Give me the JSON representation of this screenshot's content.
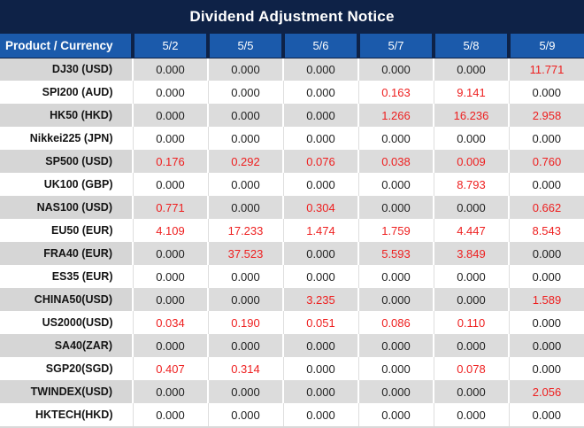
{
  "title": "Dividend Adjustment Notice",
  "colors": {
    "title_bg": "#0e2247",
    "header_bg": "#1b5aab",
    "negative_red": "#ee1f1f",
    "gray_row_label": "#d6d6d6",
    "gray_row_value": "#dcdcdc"
  },
  "table": {
    "header_label": "Product / Currency",
    "columns": [
      "5/2",
      "5/5",
      "5/6",
      "5/7",
      "5/8",
      "5/9"
    ],
    "rows": [
      {
        "label": "DJ30 (USD)",
        "values": [
          "0.000",
          "0.000",
          "0.000",
          "0.000",
          "0.000",
          "11.771"
        ],
        "red": [
          false,
          false,
          false,
          false,
          false,
          true
        ]
      },
      {
        "label": "SPI200 (AUD)",
        "values": [
          "0.000",
          "0.000",
          "0.000",
          "0.163",
          "9.141",
          "0.000"
        ],
        "red": [
          false,
          false,
          false,
          true,
          true,
          false
        ]
      },
      {
        "label": "HK50 (HKD)",
        "values": [
          "0.000",
          "0.000",
          "0.000",
          "1.266",
          "16.236",
          "2.958"
        ],
        "red": [
          false,
          false,
          false,
          true,
          true,
          true
        ]
      },
      {
        "label": "Nikkei225 (JPN)",
        "values": [
          "0.000",
          "0.000",
          "0.000",
          "0.000",
          "0.000",
          "0.000"
        ],
        "red": [
          false,
          false,
          false,
          false,
          false,
          false
        ]
      },
      {
        "label": "SP500 (USD)",
        "values": [
          "0.176",
          "0.292",
          "0.076",
          "0.038",
          "0.009",
          "0.760"
        ],
        "red": [
          true,
          true,
          true,
          true,
          true,
          true
        ]
      },
      {
        "label": "UK100 (GBP)",
        "values": [
          "0.000",
          "0.000",
          "0.000",
          "0.000",
          "8.793",
          "0.000"
        ],
        "red": [
          false,
          false,
          false,
          false,
          true,
          false
        ]
      },
      {
        "label": "NAS100 (USD)",
        "values": [
          "0.771",
          "0.000",
          "0.304",
          "0.000",
          "0.000",
          "0.662"
        ],
        "red": [
          true,
          false,
          true,
          false,
          false,
          true
        ]
      },
      {
        "label": "EU50 (EUR)",
        "values": [
          "4.109",
          "17.233",
          "1.474",
          "1.759",
          "4.447",
          "8.543"
        ],
        "red": [
          true,
          true,
          true,
          true,
          true,
          true
        ]
      },
      {
        "label": "FRA40 (EUR)",
        "values": [
          "0.000",
          "37.523",
          "0.000",
          "5.593",
          "3.849",
          "0.000"
        ],
        "red": [
          false,
          true,
          false,
          true,
          true,
          false
        ]
      },
      {
        "label": "ES35 (EUR)",
        "values": [
          "0.000",
          "0.000",
          "0.000",
          "0.000",
          "0.000",
          "0.000"
        ],
        "red": [
          false,
          false,
          false,
          false,
          false,
          false
        ]
      },
      {
        "label": "CHINA50(USD)",
        "values": [
          "0.000",
          "0.000",
          "3.235",
          "0.000",
          "0.000",
          "1.589"
        ],
        "red": [
          false,
          false,
          true,
          false,
          false,
          true
        ]
      },
      {
        "label": "US2000(USD)",
        "values": [
          "0.034",
          "0.190",
          "0.051",
          "0.086",
          "0.110",
          "0.000"
        ],
        "red": [
          true,
          true,
          true,
          true,
          true,
          false
        ]
      },
      {
        "label": "SA40(ZAR)",
        "values": [
          "0.000",
          "0.000",
          "0.000",
          "0.000",
          "0.000",
          "0.000"
        ],
        "red": [
          false,
          false,
          false,
          false,
          false,
          false
        ]
      },
      {
        "label": "SGP20(SGD)",
        "values": [
          "0.407",
          "0.314",
          "0.000",
          "0.000",
          "0.078",
          "0.000"
        ],
        "red": [
          true,
          true,
          false,
          false,
          true,
          false
        ]
      },
      {
        "label": "TWINDEX(USD)",
        "values": [
          "0.000",
          "0.000",
          "0.000",
          "0.000",
          "0.000",
          "2.056"
        ],
        "red": [
          false,
          false,
          false,
          false,
          false,
          true
        ]
      },
      {
        "label": "HKTECH(HKD)",
        "values": [
          "0.000",
          "0.000",
          "0.000",
          "0.000",
          "0.000",
          "0.000"
        ],
        "red": [
          false,
          false,
          false,
          false,
          false,
          false
        ]
      }
    ]
  }
}
